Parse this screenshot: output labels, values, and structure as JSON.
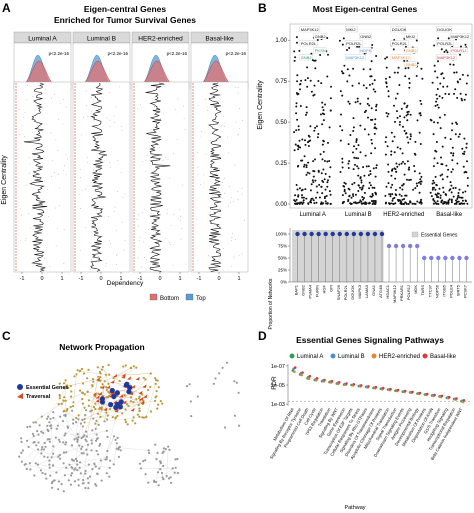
{
  "panels": {
    "A": {
      "letter": "A",
      "title_line1": "Eigen-central Genes",
      "title_line2": "Enriched for Tumor Survival Genes",
      "y_label": "Eigen Centrality",
      "x_label": "Dependency",
      "x_ticks": [
        "-1",
        "0",
        "1"
      ],
      "subtypes": [
        "Luminal A",
        "Luminal B",
        "HER2-enriched",
        "Basal-like"
      ],
      "pvalues": [
        "p<2.2e-16",
        "p<2.2e-16",
        "p<2.2e-16",
        "p<2.2e-16"
      ],
      "legend": [
        {
          "label": "Bottom",
          "color": "#e07070"
        },
        {
          "label": "Top",
          "color": "#5a9bd5"
        }
      ]
    },
    "B": {
      "letter": "B",
      "title": "Most Eigen-central Genes",
      "y_label": "Eigen Centrality",
      "y_ticks": [
        "1.00",
        "0.75",
        "0.50",
        "0.25",
        "0.00"
      ],
      "x_ticks": [
        "Luminal A",
        "Luminal B",
        "HER2-enriched",
        "Basal-like"
      ],
      "gene_labels": [
        [
          "MAP3K12",
          "GNB2",
          "POLR2L",
          "PKSN",
          "GNB2"
        ],
        [
          "MKI2",
          "GNB2",
          "POLR2L",
          "NDPK",
          "MAP3K12"
        ],
        [
          "DGUOK",
          "MKI2",
          "POLR2L",
          "GNB2",
          "MAP3K12",
          "GNB2"
        ],
        [
          "DGUOK",
          "MAP3K12",
          "POLR2L",
          "POLR1J",
          "MAP3K12"
        ]
      ],
      "bottom": {
        "y_label": "Proportion of Networks",
        "y_ticks": [
          "100%",
          "75%",
          "50%",
          "25%",
          "0%"
        ],
        "legend": "Essential Genes",
        "genes": [
          "BAP1",
          "GNB2",
          "PSMA4",
          "FURIN",
          "HGF",
          "GPI",
          "SNAP29",
          "POLR2L",
          "DGUOK",
          "MAPK3",
          "LAMA3",
          "GNA1",
          "ATG4B",
          "HDAC1",
          "MAP3K12",
          "PRKAR1",
          "POLR1J",
          "MDK",
          "TARS",
          "TTC37",
          "NOP56",
          "ITGB5",
          "POLE4",
          "SIRT5",
          "PCSK7"
        ],
        "values": [
          100,
          100,
          100,
          100,
          100,
          100,
          100,
          100,
          100,
          100,
          100,
          100,
          100,
          75,
          75,
          75,
          75,
          75,
          50,
          50,
          50,
          50,
          50,
          50,
          50
        ],
        "essential": [
          true,
          true,
          true,
          true,
          true,
          true,
          true,
          true,
          true,
          true,
          true,
          true,
          true,
          false,
          false,
          false,
          false,
          false,
          false,
          false,
          false,
          false,
          false,
          false,
          false
        ]
      }
    },
    "C": {
      "letter": "C",
      "title": "Network Propagation",
      "legend": [
        {
          "label": "Essential Genes",
          "color": "#1f3a9a"
        },
        {
          "label": "Traversal",
          "color": "#d94a22"
        }
      ]
    },
    "D": {
      "letter": "D",
      "title": "Essential Genes Signaling Pathways",
      "y_label": "FDR",
      "y_ticks": [
        "1e-07",
        "1e-05",
        "1e-03"
      ],
      "x_label": "Pathway",
      "legend": [
        {
          "label": "Luminal A",
          "color": "#2e9e5b"
        },
        {
          "label": "Luminal B",
          "color": "#4a90d9"
        },
        {
          "label": "HER2-enriched",
          "color": "#e08a2e"
        },
        {
          "label": "Basal-like",
          "color": "#d93a3a"
        }
      ],
      "pathways": [
        "Metabolism Of RNA",
        "Signaling By Receptor Tyrosine",
        "Programmed Cell Death",
        "Cell Cycle",
        "TP53 Regulation",
        "Translation",
        "Signaling By WNT",
        "Gene Expression",
        "Transcription Of E2F Targets",
        "Cellular Responses To Stress",
        "Signaling By Rho GTPases",
        "Disorders Of Transmembrane",
        "Apoptotic Cleavage Of Proteins",
        "Mitochondrial Translation",
        "Signal Transduction",
        "Downstream Signaling Events",
        "Antigen Processing",
        "Developmental Biology",
        "Metabolism Of Proteins",
        "Degradation Of AXIN",
        "G1/S Transition",
        "Hedgehog Signaling",
        "Transcriptional Regulation",
        "Beta Catenin Independent WNT"
      ]
    }
  },
  "chart_data": [
    {
      "type": "scatter",
      "title": "Most Eigen-central Genes",
      "ylabel": "Eigen Centrality",
      "categories": [
        "Luminal A",
        "Luminal B",
        "HER2-enriched",
        "Basal-like"
      ],
      "ylim": [
        0,
        1.0
      ]
    },
    {
      "type": "bar",
      "ylabel": "Proportion of Networks",
      "categories": [
        "BAP1",
        "GNB2",
        "PSMA4",
        "FURIN",
        "HGF",
        "GPI",
        "SNAP29",
        "POLR2L",
        "DGUOK",
        "MAPK3",
        "LAMA3",
        "GNA1",
        "ATG4B",
        "HDAC1",
        "MAP3K12",
        "PRKAR1",
        "POLR1J",
        "MDK",
        "TARS",
        "TTC37",
        "NOP56",
        "ITGB5",
        "POLE4",
        "SIRT5",
        "PCSK7"
      ],
      "values": [
        100,
        100,
        100,
        100,
        100,
        100,
        100,
        100,
        100,
        100,
        100,
        100,
        100,
        75,
        75,
        75,
        75,
        75,
        50,
        50,
        50,
        50,
        50,
        50,
        50
      ],
      "ylim": [
        0,
        100
      ]
    },
    {
      "type": "scatter",
      "title": "Essential Genes Signaling Pathways",
      "ylabel": "FDR",
      "xlabel": "Pathway",
      "yscale": "log",
      "ylim": [
        1e-07,
        0.001
      ],
      "series": [
        {
          "name": "Luminal A",
          "values": [
            3e-07,
            8e-07,
            2e-06,
            3e-06,
            4e-06,
            5e-06,
            7e-06,
            9e-06,
            1e-05,
            1.3e-05,
            1.6e-05,
            2e-05,
            2.5e-05,
            3e-05,
            4e-05,
            5e-05,
            6e-05,
            8e-05,
            0.0001,
            0.00013,
            0.00016,
            0.00022,
            0.0003,
            0.0005
          ]
        },
        {
          "name": "Luminal B",
          "values": [
            2e-07,
            6e-07,
            1.5e-06,
            2.5e-06,
            3.5e-06,
            4.5e-06,
            6e-06,
            8e-06,
            1e-05,
            1.2e-05,
            1.5e-05,
            1.9e-05,
            2.4e-05,
            3e-05,
            3.8e-05,
            4.7e-05,
            5.8e-05,
            7.5e-05,
            9.5e-05,
            0.00012,
            0.00015,
            0.0002,
            0.00028,
            0.00045
          ]
        },
        {
          "name": "HER2-enriched",
          "values": [
            4e-07,
            9e-07,
            2.2e-06,
            3.2e-06,
            4.2e-06,
            5.5e-06,
            7.5e-06,
            9.5e-06,
            1.1e-05,
            1.4e-05,
            1.8e-05,
            2.2e-05,
            2.8e-05,
            3.4e-05,
            4.3e-05,
            5.4e-05,
            6.6e-05,
            8.5e-05,
            0.00011,
            0.00014,
            0.00018,
            0.00024,
            0.00034,
            0.0006
          ]
        },
        {
          "name": "Basal-like",
          "values": [
            1.5e-07,
            5e-07,
            1.2e-06,
            2e-06,
            3e-06,
            4e-06,
            5.2e-06,
            7e-06,
            8.5e-06,
            1.1e-05,
            1.4e-05,
            1.7e-05,
            2.1e-05,
            2.7e-05,
            3.4e-05,
            4.3e-05,
            5.3e-05,
            7e-05,
            9e-05,
            0.00011,
            0.00014,
            0.00019,
            0.00026,
            0.0004
          ]
        }
      ]
    }
  ]
}
